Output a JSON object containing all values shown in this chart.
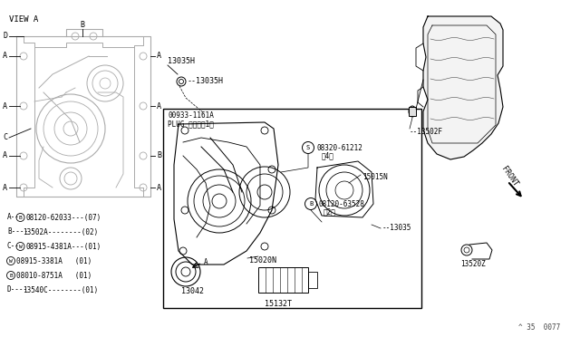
{
  "bg_color": "#ffffff",
  "lc": "#000000",
  "gray": "#777777",
  "lgray": "#aaaaaa",
  "fs": 6,
  "fs_tiny": 5,
  "watermark": "^ 35  0077",
  "view_label": "VIEW A",
  "legend_lines": [
    "A--¸08120-62033---(07)",
    "B----13502A--------(02)",
    "C--×08915-4381A---(01)",
    "   ×08915-3381A   (01)",
    "   ¸08010-8751A   (01)",
    "D----13540C--------(01)"
  ],
  "legend_prefixes": [
    "A--",
    "B----",
    "C--",
    "   ",
    "   ",
    "D----"
  ],
  "legend_circles": [
    "B",
    "",
    "W",
    "W",
    "B",
    ""
  ],
  "legend_parts": [
    "08120-62033---(07)",
    "13502A--------(02)",
    "08915-4381A---(01)",
    "08915-3381A   (01)",
    "08010-8751A   (01)",
    "13540C--------(01)"
  ]
}
